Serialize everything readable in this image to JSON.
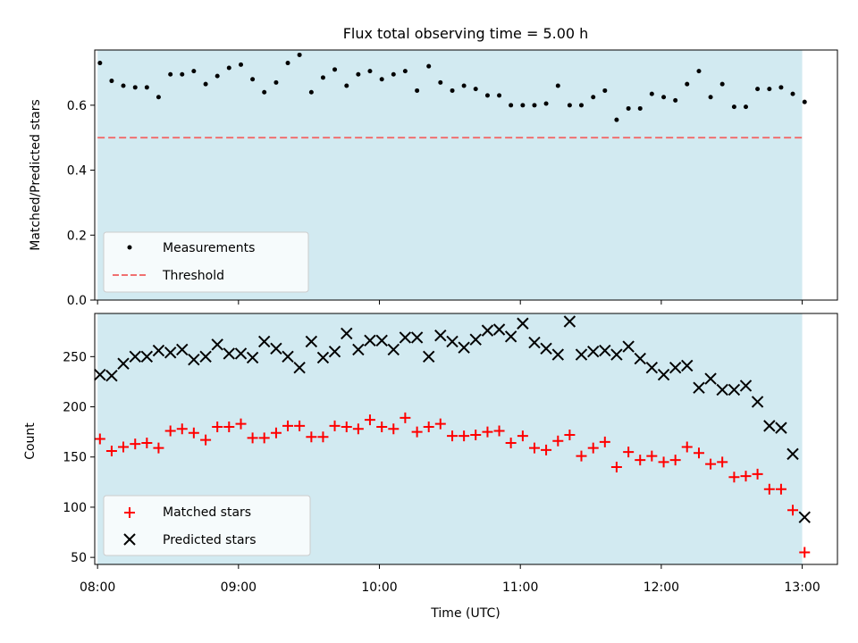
{
  "chart_data": [
    {
      "type": "scatter",
      "title": "Flux total observing time = 5.00 h",
      "xlabel": "",
      "ylabel": "Matched/Predicted stars",
      "xlim": [
        -0.02,
        5.25
      ],
      "ylim": [
        0,
        0.77
      ],
      "yticks": [
        0,
        0.2,
        0.4,
        0.6
      ],
      "ytick_labels": [
        "0.0",
        "0.2",
        "0.4",
        "0.6"
      ],
      "shaded_x_range": [
        0,
        5
      ],
      "shade_color": "#add8e6",
      "legend_position": "lower-left",
      "series": [
        {
          "name": "Measurements",
          "marker": "dot",
          "color": "#000000",
          "x": [
            0.017,
            0.1,
            0.183,
            0.267,
            0.35,
            0.433,
            0.517,
            0.6,
            0.683,
            0.767,
            0.85,
            0.933,
            1.017,
            1.1,
            1.183,
            1.267,
            1.35,
            1.433,
            1.517,
            1.6,
            1.683,
            1.767,
            1.85,
            1.933,
            2.017,
            2.1,
            2.183,
            2.267,
            2.35,
            2.433,
            2.517,
            2.6,
            2.683,
            2.767,
            2.85,
            2.933,
            3.017,
            3.1,
            3.183,
            3.267,
            3.35,
            3.433,
            3.517,
            3.6,
            3.683,
            3.767,
            3.85,
            3.933,
            4.017,
            4.1,
            4.183,
            4.267,
            4.35,
            4.433,
            4.517,
            4.6,
            4.683,
            4.767,
            4.85,
            4.933,
            5.017
          ],
          "y": [
            0.73,
            0.675,
            0.66,
            0.655,
            0.655,
            0.625,
            0.695,
            0.695,
            0.705,
            0.665,
            0.69,
            0.715,
            0.725,
            0.68,
            0.64,
            0.67,
            0.73,
            0.755,
            0.64,
            0.685,
            0.71,
            0.66,
            0.695,
            0.705,
            0.68,
            0.695,
            0.705,
            0.645,
            0.72,
            0.67,
            0.645,
            0.66,
            0.65,
            0.63,
            0.63,
            0.6,
            0.6,
            0.6,
            0.605,
            0.66,
            0.6,
            0.6,
            0.625,
            0.645,
            0.555,
            0.59,
            0.59,
            0.635,
            0.625,
            0.615,
            0.665,
            0.705,
            0.625,
            0.665,
            0.595,
            0.595,
            0.65,
            0.65,
            0.655,
            0.635,
            0.61
          ]
        },
        {
          "name": "Threshold",
          "line_style": "dashed",
          "color": "#f07070",
          "y": 0.5
        }
      ]
    },
    {
      "type": "scatter",
      "title": "",
      "xlabel": "Time (UTC)",
      "ylabel": "Count",
      "xlim": [
        -0.02,
        5.25
      ],
      "ylim": [
        43,
        293
      ],
      "xticks": [
        0,
        1,
        2,
        3,
        4,
        5
      ],
      "xtick_labels": [
        "08:00",
        "09:00",
        "10:00",
        "11:00",
        "12:00",
        "13:00"
      ],
      "yticks": [
        50,
        100,
        150,
        200,
        250
      ],
      "ytick_labels": [
        "50",
        "100",
        "150",
        "200",
        "250"
      ],
      "shaded_x_range": [
        0,
        5
      ],
      "shade_color": "#add8e6",
      "legend_position": "lower-left",
      "series": [
        {
          "name": "Matched stars",
          "marker": "plus",
          "color": "#ff0000",
          "x": [
            0.017,
            0.1,
            0.183,
            0.267,
            0.35,
            0.433,
            0.517,
            0.6,
            0.683,
            0.767,
            0.85,
            0.933,
            1.017,
            1.1,
            1.183,
            1.267,
            1.35,
            1.433,
            1.517,
            1.6,
            1.683,
            1.767,
            1.85,
            1.933,
            2.017,
            2.1,
            2.183,
            2.267,
            2.35,
            2.433,
            2.517,
            2.6,
            2.683,
            2.767,
            2.85,
            2.933,
            3.017,
            3.1,
            3.183,
            3.267,
            3.35,
            3.433,
            3.517,
            3.6,
            3.683,
            3.767,
            3.85,
            3.933,
            4.017,
            4.1,
            4.183,
            4.267,
            4.35,
            4.433,
            4.517,
            4.6,
            4.683,
            4.767,
            4.85,
            4.933,
            5.017
          ],
          "y": [
            168,
            156,
            160,
            163,
            164,
            159,
            176,
            178,
            174,
            167,
            180,
            180,
            183,
            169,
            169,
            174,
            181,
            181,
            170,
            170,
            181,
            180,
            178,
            187,
            180,
            178,
            189,
            175,
            180,
            183,
            171,
            171,
            172,
            175,
            176,
            164,
            171,
            159,
            157,
            166,
            172,
            151,
            159,
            165,
            140,
            155,
            147,
            151,
            145,
            147,
            160,
            154,
            143,
            145,
            130,
            131,
            133,
            118,
            118,
            97,
            55
          ]
        },
        {
          "name": "Predicted stars",
          "marker": "x",
          "color": "#000000",
          "x": [
            0.017,
            0.1,
            0.183,
            0.267,
            0.35,
            0.433,
            0.517,
            0.6,
            0.683,
            0.767,
            0.85,
            0.933,
            1.017,
            1.1,
            1.183,
            1.267,
            1.35,
            1.433,
            1.517,
            1.6,
            1.683,
            1.767,
            1.85,
            1.933,
            2.017,
            2.1,
            2.183,
            2.267,
            2.35,
            2.433,
            2.517,
            2.6,
            2.683,
            2.767,
            2.85,
            2.933,
            3.017,
            3.1,
            3.183,
            3.267,
            3.35,
            3.433,
            3.517,
            3.6,
            3.683,
            3.767,
            3.85,
            3.933,
            4.017,
            4.1,
            4.183,
            4.267,
            4.35,
            4.433,
            4.517,
            4.6,
            4.683,
            4.767,
            4.85,
            4.933,
            5.017
          ],
          "y": [
            232,
            231,
            243,
            250,
            250,
            256,
            254,
            257,
            247,
            250,
            262,
            253,
            253,
            249,
            265,
            258,
            250,
            239,
            265,
            249,
            255,
            273,
            257,
            266,
            266,
            257,
            269,
            269,
            250,
            271,
            265,
            259,
            267,
            276,
            277,
            270,
            283,
            264,
            258,
            252,
            285,
            252,
            255,
            256,
            252,
            260,
            248,
            239,
            232,
            239,
            241,
            219,
            228,
            217,
            217,
            221,
            205,
            181,
            179,
            153,
            90
          ]
        }
      ]
    }
  ]
}
